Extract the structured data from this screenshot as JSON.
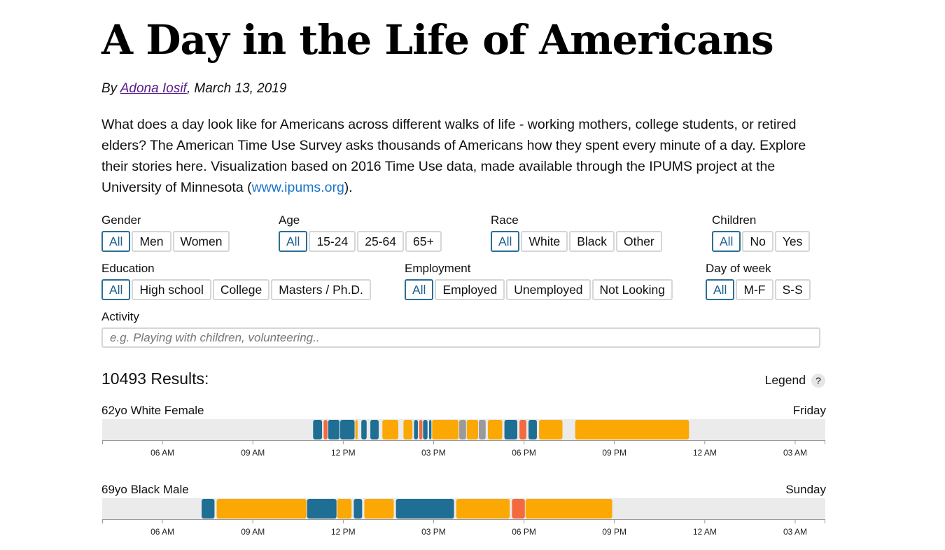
{
  "header": {
    "title": "A Day in the Life of Americans",
    "byline_prefix": "By ",
    "author": "Adona Iosif",
    "byline_suffix": ", March 13, 2019",
    "intro": "What does a day look like for Americans across different walks of life - working mothers, college students, or retired elders? The American Time Use Survey asks thousands of Americans how they spent every minute of a day. Explore their stories here. Visualization based on 2016 Time Use data, made available through the IPUMS project at the University of Minnesota (",
    "intro_link": "www.ipums.org",
    "intro_end": ")."
  },
  "filters": {
    "gender": {
      "label": "Gender",
      "options": [
        "All",
        "Men",
        "Women"
      ],
      "selected": "All"
    },
    "age": {
      "label": "Age",
      "options": [
        "All",
        "15-24",
        "25-64",
        "65+"
      ],
      "selected": "All"
    },
    "race": {
      "label": "Race",
      "options": [
        "All",
        "White",
        "Black",
        "Other"
      ],
      "selected": "All"
    },
    "children": {
      "label": "Children",
      "options": [
        "All",
        "No",
        "Yes"
      ],
      "selected": "All"
    },
    "education": {
      "label": "Education",
      "options": [
        "All",
        "High school",
        "College",
        "Masters / Ph.D."
      ],
      "selected": "All"
    },
    "employment": {
      "label": "Employment",
      "options": [
        "All",
        "Employed",
        "Unemployed",
        "Not Looking"
      ],
      "selected": "All"
    },
    "day": {
      "label": "Day of week",
      "options": [
        "All",
        "M-F",
        "S-S"
      ],
      "selected": "All"
    }
  },
  "activity": {
    "label": "Activity",
    "placeholder": "e.g. Playing with children, volunteering.."
  },
  "results_text": "10493 Results:",
  "legend": {
    "label": "Legend",
    "help": "?"
  },
  "colors": {
    "track": "#ebebeb",
    "blue": "#1f6e93",
    "orange": "#fba804",
    "red": "#f26a3e",
    "gray": "#9a9a9a",
    "accent": "#2a6f97"
  },
  "axis": {
    "start_hour": 4,
    "end_hour": 28,
    "ticks": [
      "06 AM",
      "09 AM",
      "12 PM",
      "03 PM",
      "06 PM",
      "09 PM",
      "12 AM",
      "03 AM"
    ],
    "tick_hours": [
      6,
      9,
      12,
      15,
      18,
      21,
      24,
      27
    ]
  },
  "people": [
    {
      "label": "62yo White Female",
      "day": "Friday",
      "segments": [
        [
          11.0,
          11.32,
          "blue"
        ],
        [
          11.35,
          11.5,
          "red"
        ],
        [
          11.5,
          11.9,
          "blue"
        ],
        [
          11.9,
          12.4,
          "blue"
        ],
        [
          12.4,
          12.5,
          "orange"
        ],
        [
          12.6,
          12.8,
          "blue"
        ],
        [
          12.9,
          13.2,
          "blue"
        ],
        [
          13.3,
          13.85,
          "orange"
        ],
        [
          14.0,
          14.32,
          "orange"
        ],
        [
          14.35,
          14.5,
          "blue"
        ],
        [
          14.52,
          14.65,
          "red"
        ],
        [
          14.65,
          14.82,
          "blue"
        ],
        [
          14.85,
          14.95,
          "blue"
        ],
        [
          14.95,
          15.85,
          "orange"
        ],
        [
          15.85,
          16.1,
          "gray"
        ],
        [
          16.1,
          16.5,
          "orange"
        ],
        [
          16.5,
          16.75,
          "gray"
        ],
        [
          16.8,
          17.3,
          "orange"
        ],
        [
          17.35,
          17.8,
          "blue"
        ],
        [
          17.85,
          18.1,
          "red"
        ],
        [
          18.15,
          18.45,
          "blue"
        ],
        [
          18.5,
          19.3,
          "orange"
        ],
        [
          19.7,
          23.5,
          "orange"
        ]
      ]
    },
    {
      "label": "69yo Black Male",
      "day": "Sunday",
      "segments": [
        [
          7.3,
          7.75,
          "blue"
        ],
        [
          7.8,
          10.8,
          "orange"
        ],
        [
          10.8,
          11.8,
          "blue"
        ],
        [
          11.8,
          12.3,
          "orange"
        ],
        [
          12.35,
          12.65,
          "blue"
        ],
        [
          12.7,
          13.7,
          "orange"
        ],
        [
          13.75,
          15.7,
          "blue"
        ],
        [
          15.75,
          17.55,
          "orange"
        ],
        [
          17.6,
          18.05,
          "red"
        ],
        [
          18.05,
          20.95,
          "orange"
        ]
      ]
    }
  ]
}
